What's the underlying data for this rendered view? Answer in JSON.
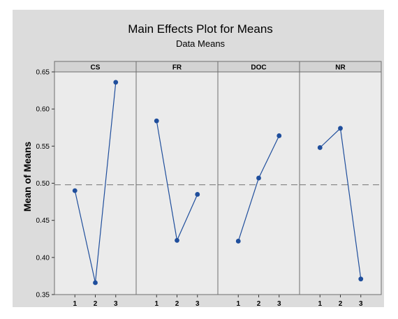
{
  "chart_data": {
    "type": "line",
    "title": "Main Effects Plot for Means",
    "subtitle": "Data Means",
    "ylabel": "Mean of Means",
    "xlabel": "",
    "ylim": [
      0.35,
      0.65
    ],
    "yticks": [
      {
        "value": 0.35,
        "label": "0.35"
      },
      {
        "value": 0.4,
        "label": "0.40"
      },
      {
        "value": 0.45,
        "label": "0.45"
      },
      {
        "value": 0.5,
        "label": "0.50"
      },
      {
        "value": 0.55,
        "label": "0.55"
      },
      {
        "value": 0.6,
        "label": "0.60"
      },
      {
        "value": 0.65,
        "label": "0.65"
      }
    ],
    "reference_line": 0.498,
    "grid": false,
    "panels": [
      {
        "name": "CS",
        "x": [
          "1",
          "2",
          "3"
        ],
        "values": [
          0.49,
          0.366,
          0.636
        ]
      },
      {
        "name": "FR",
        "x": [
          "1",
          "2",
          "3"
        ],
        "values": [
          0.584,
          0.423,
          0.485
        ]
      },
      {
        "name": "DOC",
        "x": [
          "1",
          "2",
          "3"
        ],
        "values": [
          0.422,
          0.507,
          0.564
        ]
      },
      {
        "name": "NR",
        "x": [
          "1",
          "2",
          "3"
        ],
        "values": [
          0.548,
          0.574,
          0.371
        ]
      }
    ],
    "colors": {
      "series": "#1f4e9c",
      "reference": "#8a8a8a",
      "panel_background": "#ebebeb",
      "figure_background": "#dcdcdc",
      "header_background": "#d3d3d3"
    }
  }
}
